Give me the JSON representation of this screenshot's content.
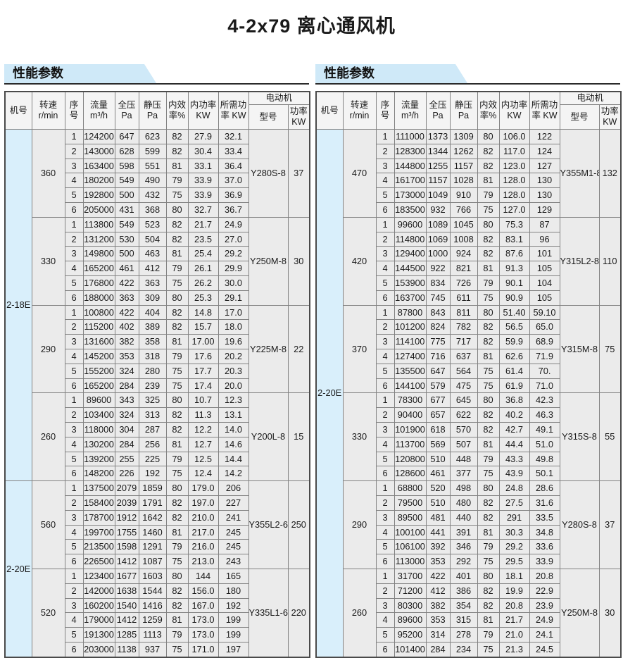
{
  "page_title": "4-2x79 离心通风机",
  "colors": {
    "banner_bg": "#cfe9f8",
    "machine_col_bg": "#d9effb",
    "cell_bg": "#ebebeb",
    "header_bg": "#f4f4f4",
    "grid_border": "#828282",
    "outer_border": "#4a4a4a"
  },
  "header": {
    "machine": "机号",
    "speed": "转速\nr/min",
    "index": "序\n号",
    "flow": "流量\nm³/h",
    "total_pressure": "全压\nPa",
    "static_pressure": "静压\nPa",
    "efficiency": "内效\n率%",
    "internal_power": "内功率\nKW",
    "required_power": "所需功\n率 KW",
    "motor": "电动机",
    "motor_model": "型号",
    "motor_power": "功率\nKW"
  },
  "tables": [
    {
      "section_title": "性能参数",
      "machine_groups": [
        {
          "machine_no": "2-18E",
          "block_count": 4
        },
        {
          "machine_no": "2-20E",
          "block_count": 2
        }
      ],
      "blocks": [
        {
          "speed": "360",
          "motor_model": "Y280S-8",
          "motor_power": "37",
          "rows": [
            [
              "1",
              "124200",
              "647",
              "623",
              "82",
              "27.9",
              "32.1"
            ],
            [
              "2",
              "143000",
              "628",
              "599",
              "82",
              "30.4",
              "33.4"
            ],
            [
              "3",
              "163400",
              "598",
              "551",
              "81",
              "33.1",
              "36.4"
            ],
            [
              "4",
              "180200",
              "549",
              "490",
              "79",
              "33.9",
              "37.0"
            ],
            [
              "5",
              "192800",
              "500",
              "432",
              "75",
              "33.9",
              "36.9"
            ],
            [
              "6",
              "205000",
              "431",
              "368",
              "80",
              "32.7",
              "36.7"
            ]
          ]
        },
        {
          "speed": "330",
          "motor_model": "Y250M-8",
          "motor_power": "30",
          "rows": [
            [
              "1",
              "113800",
              "549",
              "523",
              "82",
              "21.7",
              "24.9"
            ],
            [
              "2",
              "131200",
              "530",
              "504",
              "82",
              "23.5",
              "27.0"
            ],
            [
              "3",
              "149800",
              "500",
              "463",
              "81",
              "25.4",
              "29.2"
            ],
            [
              "4",
              "165200",
              "461",
              "412",
              "79",
              "26.1",
              "29.9"
            ],
            [
              "5",
              "176800",
              "422",
              "363",
              "75",
              "26.2",
              "30.0"
            ],
            [
              "6",
              "188000",
              "363",
              "309",
              "80",
              "25.3",
              "29.1"
            ]
          ]
        },
        {
          "speed": "290",
          "motor_model": "Y225M-8",
          "motor_power": "22",
          "rows": [
            [
              "1",
              "100800",
              "422",
              "404",
              "82",
              "14.8",
              "17.0"
            ],
            [
              "2",
              "115200",
              "402",
              "389",
              "82",
              "15.7",
              "18.0"
            ],
            [
              "3",
              "131600",
              "382",
              "358",
              "81",
              "17.00",
              "19.6"
            ],
            [
              "4",
              "145200",
              "353",
              "318",
              "79",
              "17.6",
              "20.2"
            ],
            [
              "5",
              "155200",
              "324",
              "280",
              "75",
              "17.7",
              "20.3"
            ],
            [
              "6",
              "165200",
              "284",
              "239",
              "75",
              "17.4",
              "20.0"
            ]
          ]
        },
        {
          "speed": "260",
          "motor_model": "Y200L-8",
          "motor_power": "15",
          "rows": [
            [
              "1",
              "89600",
              "343",
              "325",
              "80",
              "10.7",
              "12.3"
            ],
            [
              "2",
              "103400",
              "324",
              "313",
              "82",
              "11.3",
              "13.1"
            ],
            [
              "3",
              "118000",
              "304",
              "287",
              "82",
              "12.2",
              "14.0"
            ],
            [
              "4",
              "130200",
              "284",
              "256",
              "81",
              "12.7",
              "14.6"
            ],
            [
              "5",
              "139200",
              "255",
              "225",
              "79",
              "12.5",
              "14.4"
            ],
            [
              "6",
              "148200",
              "226",
              "192",
              "75",
              "12.4",
              "14.2"
            ]
          ]
        },
        {
          "speed": "560",
          "motor_model": "Y355L2-6",
          "motor_power": "250",
          "rows": [
            [
              "1",
              "137500",
              "2079",
              "1859",
              "80",
              "179.0",
              "206"
            ],
            [
              "2",
              "158400",
              "2039",
              "1791",
              "82",
              "197.0",
              "227"
            ],
            [
              "3",
              "178700",
              "1912",
              "1642",
              "82",
              "210.0",
              "241"
            ],
            [
              "4",
              "199700",
              "1755",
              "1460",
              "81",
              "217.0",
              "245"
            ],
            [
              "5",
              "213500",
              "1598",
              "1291",
              "79",
              "216.0",
              "245"
            ],
            [
              "6",
              "226500",
              "1412",
              "1087",
              "75",
              "213.0",
              "243"
            ]
          ]
        },
        {
          "speed": "520",
          "motor_model": "Y335L1-6",
          "motor_power": "220",
          "rows": [
            [
              "1",
              "123400",
              "1677",
              "1603",
              "80",
              "144",
              "165"
            ],
            [
              "2",
              "142000",
              "1638",
              "1544",
              "82",
              "156.0",
              "180"
            ],
            [
              "3",
              "160200",
              "1540",
              "1416",
              "82",
              "167.0",
              "192"
            ],
            [
              "4",
              "179000",
              "1412",
              "1259",
              "81",
              "173.0",
              "199"
            ],
            [
              "5",
              "191300",
              "1285",
              "1113",
              "79",
              "173.0",
              "199"
            ],
            [
              "6",
              "203000",
              "1138",
              "937",
              "75",
              "171.0",
              "197"
            ]
          ]
        }
      ]
    },
    {
      "section_title": "性能参数",
      "machine_groups": [
        {
          "machine_no": "2-20E",
          "block_count": 6
        }
      ],
      "blocks": [
        {
          "speed": "470",
          "motor_model": "Y355M1-8",
          "motor_power": "132",
          "rows": [
            [
              "1",
              "111000",
              "1373",
              "1309",
              "80",
              "106.0",
              "122"
            ],
            [
              "2",
              "128300",
              "1344",
              "1262",
              "82",
              "117.0",
              "124"
            ],
            [
              "3",
              "144800",
              "1255",
              "1157",
              "82",
              "123.0",
              "127"
            ],
            [
              "4",
              "161700",
              "1157",
              "1028",
              "81",
              "128.0",
              "130"
            ],
            [
              "5",
              "173000",
              "1049",
              "910",
              "79",
              "128.0",
              "130"
            ],
            [
              "6",
              "183500",
              "932",
              "766",
              "75",
              "127.0",
              "129"
            ]
          ]
        },
        {
          "speed": "420",
          "motor_model": "Y315L2-8",
          "motor_power": "110",
          "rows": [
            [
              "1",
              "99600",
              "1089",
              "1045",
              "80",
              "75.3",
              "87"
            ],
            [
              "2",
              "114800",
              "1069",
              "1008",
              "82",
              "83.1",
              "96"
            ],
            [
              "3",
              "129400",
              "1000",
              "924",
              "82",
              "87.6",
              "101"
            ],
            [
              "4",
              "144500",
              "922",
              "821",
              "81",
              "91.3",
              "105"
            ],
            [
              "5",
              "153900",
              "834",
              "726",
              "79",
              "90.1",
              "104"
            ],
            [
              "6",
              "163700",
              "745",
              "611",
              "75",
              "90.9",
              "105"
            ]
          ]
        },
        {
          "speed": "370",
          "motor_model": "Y315M-8",
          "motor_power": "75",
          "rows": [
            [
              "1",
              "87800",
              "843",
              "811",
              "80",
              "51.40",
              "59.10"
            ],
            [
              "2",
              "101200",
              "824",
              "782",
              "82",
              "56.5",
              "65.0"
            ],
            [
              "3",
              "114100",
              "775",
              "717",
              "82",
              "59.9",
              "68.9"
            ],
            [
              "4",
              "127400",
              "716",
              "637",
              "81",
              "62.6",
              "71.9"
            ],
            [
              "5",
              "135500",
              "647",
              "564",
              "75",
              "61.4",
              "70."
            ],
            [
              "6",
              "144100",
              "579",
              "475",
              "75",
              "61.9",
              "71.0"
            ]
          ]
        },
        {
          "speed": "330",
          "motor_model": "Y315S-8",
          "motor_power": "55",
          "rows": [
            [
              "1",
              "78300",
              "677",
              "645",
              "80",
              "36.8",
              "42.3"
            ],
            [
              "2",
              "90400",
              "657",
              "622",
              "82",
              "40.2",
              "46.3"
            ],
            [
              "3",
              "101900",
              "618",
              "570",
              "82",
              "42.7",
              "49.1"
            ],
            [
              "4",
              "113700",
              "569",
              "507",
              "81",
              "44.4",
              "51.0"
            ],
            [
              "5",
              "120800",
              "510",
              "448",
              "79",
              "43.3",
              "49.8"
            ],
            [
              "6",
              "128600",
              "461",
              "377",
              "75",
              "43.9",
              "50.1"
            ]
          ]
        },
        {
          "speed": "290",
          "motor_model": "Y280S-8",
          "motor_power": "37",
          "rows": [
            [
              "1",
              "68800",
              "520",
              "498",
              "80",
              "24.8",
              "28.6"
            ],
            [
              "2",
              "79500",
              "510",
              "480",
              "82",
              "27.5",
              "31.6"
            ],
            [
              "3",
              "89500",
              "481",
              "440",
              "82",
              "291",
              "33.5"
            ],
            [
              "4",
              "100100",
              "441",
              "391",
              "81",
              "30.3",
              "34.8"
            ],
            [
              "5",
              "106100",
              "392",
              "346",
              "79",
              "29.2",
              "33.6"
            ],
            [
              "6",
              "113000",
              "353",
              "292",
              "75",
              "29.5",
              "33.9"
            ]
          ]
        },
        {
          "speed": "260",
          "motor_model": "Y250M-8",
          "motor_power": "30",
          "rows": [
            [
              "1",
              "31700",
              "422",
              "401",
              "80",
              "18.1",
              "20.8"
            ],
            [
              "2",
              "71200",
              "412",
              "386",
              "82",
              "19.9",
              "22.9"
            ],
            [
              "3",
              "80300",
              "382",
              "354",
              "82",
              "20.8",
              "23.9"
            ],
            [
              "4",
              "89600",
              "353",
              "315",
              "81",
              "21.7",
              "24.9"
            ],
            [
              "5",
              "95200",
              "314",
              "278",
              "79",
              "21.0",
              "24.1"
            ],
            [
              "6",
              "101400",
              "284",
              "234",
              "75",
              "21.3",
              "24.5"
            ]
          ]
        }
      ]
    }
  ]
}
